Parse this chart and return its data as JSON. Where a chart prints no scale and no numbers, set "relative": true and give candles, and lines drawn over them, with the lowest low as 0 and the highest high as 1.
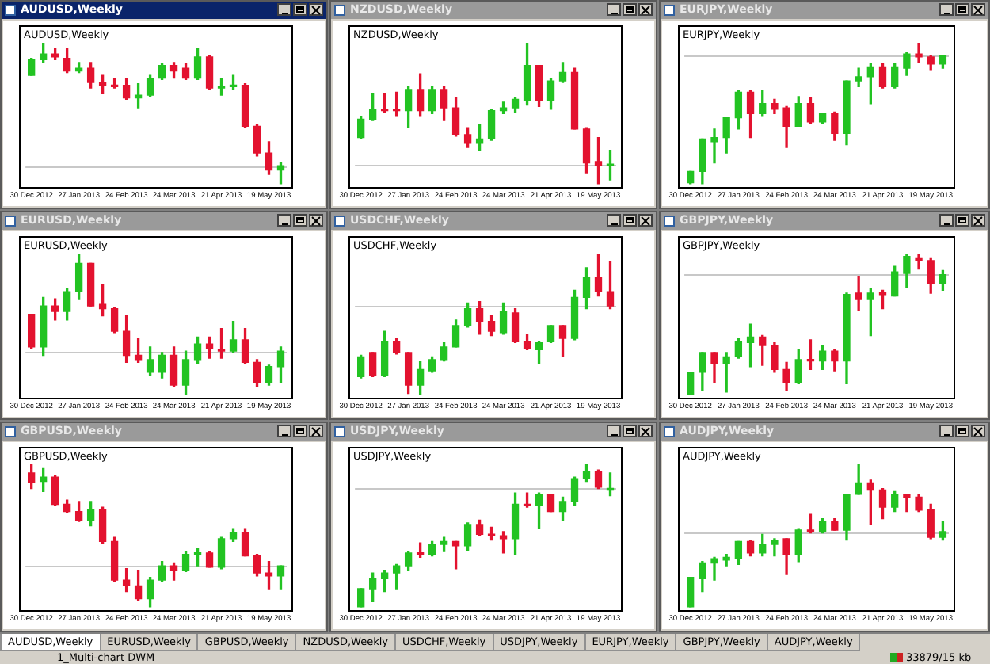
{
  "chart_data": [
    {
      "type": "candlestick",
      "title": "AUDUSD,Weekly",
      "subtitle": "AUDUSD,Weekly",
      "relative": true,
      "legend": false,
      "categories": [
        "30 Dec 2012",
        null,
        null,
        null,
        "27 Jan 2013",
        null,
        null,
        null,
        "24 Feb 2013",
        null,
        null,
        null,
        "24 Mar 2013",
        null,
        null,
        null,
        "21 Apr 2013",
        null,
        null,
        null,
        "19 May 2013",
        null
      ],
      "ohlc": [
        [
          0.77,
          0.89,
          0.77,
          0.88
        ],
        [
          0.88,
          1.0,
          0.86,
          0.92
        ],
        [
          0.92,
          0.96,
          0.88,
          0.9
        ],
        [
          0.89,
          0.96,
          0.79,
          0.8
        ],
        [
          0.8,
          0.86,
          0.79,
          0.82
        ],
        [
          0.82,
          0.86,
          0.68,
          0.72
        ],
        [
          0.72,
          0.77,
          0.64,
          0.7
        ],
        [
          0.7,
          0.75,
          0.68,
          0.69
        ],
        [
          0.7,
          0.75,
          0.6,
          0.61
        ],
        [
          0.61,
          0.71,
          0.54,
          0.63
        ],
        [
          0.63,
          0.77,
          0.62,
          0.75
        ],
        [
          0.75,
          0.85,
          0.74,
          0.84
        ],
        [
          0.84,
          0.86,
          0.75,
          0.8
        ],
        [
          0.82,
          0.85,
          0.74,
          0.75
        ],
        [
          0.75,
          0.96,
          0.74,
          0.9
        ],
        [
          0.9,
          0.91,
          0.67,
          0.68
        ],
        [
          0.68,
          0.75,
          0.63,
          0.69
        ],
        [
          0.69,
          0.77,
          0.67,
          0.7
        ],
        [
          0.7,
          0.71,
          0.4,
          0.41
        ],
        [
          0.41,
          0.42,
          0.2,
          0.22
        ],
        [
          0.22,
          0.3,
          0.07,
          0.1
        ],
        [
          0.1,
          0.15,
          0.0,
          0.13
        ]
      ],
      "colors": [
        "#22c322",
        "#22c322",
        "#e3122f",
        "#e3122f",
        "#22c322",
        "#e3122f",
        "#e3122f",
        "#e3122f",
        "#e3122f",
        "#22c322",
        "#22c322",
        "#22c322",
        "#e3122f",
        "#e3122f",
        "#22c322",
        "#e3122f",
        "#22c322",
        "#22c322",
        "#e3122f",
        "#e3122f",
        "#e3122f",
        "#22c322"
      ],
      "ref_lines": [
        {
          "axis": "y",
          "value": 0.13,
          "color": "#c8c8c8"
        }
      ]
    },
    {
      "type": "candlestick",
      "title": "NZDUSD,Weekly",
      "subtitle": "NZDUSD,Weekly",
      "relative": true,
      "legend": false,
      "categories": [
        "30 Dec 2012",
        null,
        null,
        null,
        "27 Jan 2013",
        null,
        null,
        null,
        "24 Feb 2013",
        null,
        null,
        null,
        "24 Mar 2013",
        null,
        null,
        null,
        "21 Apr 2013",
        null,
        null,
        null,
        "19 May 2013",
        null
      ],
      "ohlc": [
        [
          0.33,
          0.48,
          0.32,
          0.46
        ],
        [
          0.46,
          0.64,
          0.45,
          0.53
        ],
        [
          0.53,
          0.64,
          0.51,
          0.52
        ],
        [
          0.53,
          0.65,
          0.48,
          0.52
        ],
        [
          0.52,
          0.69,
          0.4,
          0.67
        ],
        [
          0.67,
          0.78,
          0.48,
          0.52
        ],
        [
          0.52,
          0.69,
          0.5,
          0.67
        ],
        [
          0.67,
          0.69,
          0.45,
          0.54
        ],
        [
          0.54,
          0.61,
          0.34,
          0.35
        ],
        [
          0.35,
          0.4,
          0.26,
          0.29
        ],
        [
          0.29,
          0.42,
          0.24,
          0.32
        ],
        [
          0.32,
          0.53,
          0.31,
          0.52
        ],
        [
          0.52,
          0.58,
          0.5,
          0.54
        ],
        [
          0.54,
          0.61,
          0.51,
          0.6
        ],
        [
          0.59,
          1.0,
          0.56,
          0.84
        ],
        [
          0.84,
          0.84,
          0.55,
          0.59
        ],
        [
          0.59,
          0.75,
          0.53,
          0.73
        ],
        [
          0.73,
          0.86,
          0.72,
          0.79
        ],
        [
          0.79,
          0.82,
          0.39,
          0.39
        ],
        [
          0.39,
          0.4,
          0.08,
          0.15
        ],
        [
          0.16,
          0.33,
          0.0,
          0.13
        ],
        [
          0.13,
          0.24,
          0.03,
          0.14
        ]
      ],
      "colors": [
        "#22c322",
        "#22c322",
        "#e3122f",
        "#e3122f",
        "#22c322",
        "#e3122f",
        "#22c322",
        "#e3122f",
        "#e3122f",
        "#e3122f",
        "#22c322",
        "#22c322",
        "#22c322",
        "#22c322",
        "#22c322",
        "#e3122f",
        "#22c322",
        "#22c322",
        "#e3122f",
        "#e3122f",
        "#e3122f",
        "#22c322"
      ],
      "ref_lines": [
        {
          "axis": "y",
          "value": 0.14,
          "color": "#c8c8c8"
        }
      ]
    },
    {
      "type": "candlestick",
      "title": "EURJPY,Weekly",
      "subtitle": "EURJPY,Weekly",
      "relative": true,
      "legend": false,
      "categories": [
        "30 Dec 2012",
        null,
        null,
        null,
        "27 Jan 2013",
        null,
        null,
        null,
        "24 Feb 2013",
        null,
        null,
        null,
        "24 Mar 2013",
        null,
        null,
        null,
        "21 Apr 2013",
        null,
        null,
        null,
        "19 May 2013",
        null
      ],
      "ohlc": [
        [
          0.01,
          0.09,
          0.0,
          0.09
        ],
        [
          0.09,
          0.32,
          0.0,
          0.32
        ],
        [
          0.3,
          0.39,
          0.15,
          0.33
        ],
        [
          0.33,
          0.47,
          0.22,
          0.47
        ],
        [
          0.47,
          0.66,
          0.39,
          0.65
        ],
        [
          0.65,
          0.66,
          0.33,
          0.5
        ],
        [
          0.5,
          0.66,
          0.48,
          0.57
        ],
        [
          0.57,
          0.6,
          0.5,
          0.53
        ],
        [
          0.54,
          0.55,
          0.26,
          0.41
        ],
        [
          0.41,
          0.62,
          0.41,
          0.57
        ],
        [
          0.57,
          0.61,
          0.43,
          0.44
        ],
        [
          0.44,
          0.5,
          0.43,
          0.5
        ],
        [
          0.5,
          0.51,
          0.31,
          0.36
        ],
        [
          0.36,
          0.73,
          0.28,
          0.73
        ],
        [
          0.73,
          0.82,
          0.69,
          0.76
        ],
        [
          0.76,
          0.85,
          0.57,
          0.83
        ],
        [
          0.83,
          0.85,
          0.68,
          0.69
        ],
        [
          0.69,
          0.85,
          0.68,
          0.83
        ],
        [
          0.82,
          0.93,
          0.77,
          0.92
        ],
        [
          0.92,
          1.0,
          0.86,
          0.9
        ],
        [
          0.9,
          0.91,
          0.81,
          0.85
        ],
        [
          0.85,
          0.91,
          0.82,
          0.91
        ]
      ],
      "colors": [
        "#22c322",
        "#22c322",
        "#22c322",
        "#22c322",
        "#22c322",
        "#e3122f",
        "#22c322",
        "#e3122f",
        "#e3122f",
        "#22c322",
        "#e3122f",
        "#22c322",
        "#e3122f",
        "#22c322",
        "#22c322",
        "#22c322",
        "#e3122f",
        "#22c322",
        "#22c322",
        "#e3122f",
        "#e3122f",
        "#22c322"
      ],
      "ref_lines": [
        {
          "axis": "y",
          "value": 0.91,
          "color": "#c8c8c8"
        }
      ]
    },
    {
      "type": "candlestick",
      "title": "EURUSD,Weekly",
      "subtitle": "EURUSD,Weekly",
      "relative": true,
      "legend": false,
      "categories": [
        "30 Dec 2012",
        null,
        null,
        null,
        "27 Jan 2013",
        null,
        null,
        null,
        "24 Feb 2013",
        null,
        null,
        null,
        "24 Mar 2013",
        null,
        null,
        null,
        "21 Apr 2013",
        null,
        null,
        null,
        "19 May 2013",
        null
      ],
      "ohlc": [
        [
          0.57,
          0.57,
          0.33,
          0.34
        ],
        [
          0.34,
          0.69,
          0.28,
          0.63
        ],
        [
          0.63,
          0.68,
          0.53,
          0.59
        ],
        [
          0.59,
          0.75,
          0.53,
          0.73
        ],
        [
          0.73,
          1.0,
          0.68,
          0.93
        ],
        [
          0.93,
          0.93,
          0.63,
          0.63
        ],
        [
          0.64,
          0.78,
          0.56,
          0.61
        ],
        [
          0.61,
          0.62,
          0.44,
          0.45
        ],
        [
          0.45,
          0.56,
          0.23,
          0.28
        ],
        [
          0.28,
          0.4,
          0.23,
          0.25
        ],
        [
          0.16,
          0.34,
          0.14,
          0.25
        ],
        [
          0.16,
          0.3,
          0.12,
          0.28
        ],
        [
          0.28,
          0.34,
          0.06,
          0.07
        ],
        [
          0.07,
          0.31,
          0.0,
          0.25
        ],
        [
          0.25,
          0.41,
          0.22,
          0.36
        ],
        [
          0.36,
          0.41,
          0.26,
          0.33
        ],
        [
          0.32,
          0.47,
          0.26,
          0.31
        ],
        [
          0.31,
          0.52,
          0.3,
          0.39
        ],
        [
          0.39,
          0.47,
          0.22,
          0.23
        ],
        [
          0.23,
          0.25,
          0.06,
          0.09
        ],
        [
          0.09,
          0.21,
          0.07,
          0.2
        ],
        [
          0.2,
          0.34,
          0.09,
          0.31
        ]
      ],
      "colors": [
        "#e3122f",
        "#22c322",
        "#e3122f",
        "#22c322",
        "#22c322",
        "#e3122f",
        "#e3122f",
        "#e3122f",
        "#e3122f",
        "#e3122f",
        "#22c322",
        "#22c322",
        "#e3122f",
        "#22c322",
        "#22c322",
        "#e3122f",
        "#e3122f",
        "#22c322",
        "#e3122f",
        "#e3122f",
        "#22c322",
        "#22c322"
      ],
      "ref_lines": [
        {
          "axis": "y",
          "value": 0.31,
          "color": "#c8c8c8"
        }
      ]
    },
    {
      "type": "candlestick",
      "title": "USDCHF,Weekly",
      "subtitle": "USDCHF,Weekly",
      "relative": true,
      "legend": false,
      "categories": [
        "30 Dec 2012",
        null,
        null,
        null,
        "27 Jan 2013",
        null,
        null,
        null,
        "24 Feb 2013",
        null,
        null,
        null,
        "24 Mar 2013",
        null,
        null,
        null,
        "21 Apr 2013",
        null,
        null,
        null,
        "19 May 2013",
        null
      ],
      "ohlc": [
        [
          0.13,
          0.28,
          0.12,
          0.27
        ],
        [
          0.3,
          0.3,
          0.13,
          0.14
        ],
        [
          0.14,
          0.45,
          0.13,
          0.38
        ],
        [
          0.38,
          0.4,
          0.29,
          0.3
        ],
        [
          0.3,
          0.3,
          0.01,
          0.07
        ],
        [
          0.07,
          0.24,
          0.0,
          0.18
        ],
        [
          0.17,
          0.27,
          0.16,
          0.25
        ],
        [
          0.25,
          0.37,
          0.24,
          0.34
        ],
        [
          0.34,
          0.53,
          0.34,
          0.49
        ],
        [
          0.49,
          0.65,
          0.48,
          0.61
        ],
        [
          0.61,
          0.66,
          0.43,
          0.52
        ],
        [
          0.52,
          0.56,
          0.42,
          0.45
        ],
        [
          0.44,
          0.65,
          0.43,
          0.59
        ],
        [
          0.58,
          0.61,
          0.37,
          0.38
        ],
        [
          0.38,
          0.43,
          0.32,
          0.33
        ],
        [
          0.32,
          0.38,
          0.22,
          0.37
        ],
        [
          0.38,
          0.49,
          0.37,
          0.49
        ],
        [
          0.49,
          0.49,
          0.27,
          0.4
        ],
        [
          0.4,
          0.74,
          0.39,
          0.69
        ],
        [
          0.69,
          0.9,
          0.61,
          0.83
        ],
        [
          0.83,
          1.0,
          0.7,
          0.73
        ],
        [
          0.73,
          0.94,
          0.61,
          0.63
        ]
      ],
      "colors": [
        "#22c322",
        "#e3122f",
        "#22c322",
        "#e3122f",
        "#e3122f",
        "#22c322",
        "#22c322",
        "#22c322",
        "#22c322",
        "#22c322",
        "#e3122f",
        "#e3122f",
        "#22c322",
        "#e3122f",
        "#e3122f",
        "#22c322",
        "#22c322",
        "#e3122f",
        "#22c322",
        "#22c322",
        "#e3122f",
        "#e3122f"
      ],
      "ref_lines": [
        {
          "axis": "y",
          "value": 0.63,
          "color": "#c8c8c8"
        }
      ]
    },
    {
      "type": "candlestick",
      "title": "GBPJPY,Weekly",
      "subtitle": "GBPJPY,Weekly",
      "relative": true,
      "legend": false,
      "categories": [
        "30 Dec 2012",
        null,
        null,
        null,
        "27 Jan 2013",
        null,
        null,
        null,
        "24 Feb 2013",
        null,
        null,
        null,
        "24 Mar 2013",
        null,
        null,
        null,
        "21 Apr 2013",
        null,
        null,
        null,
        "19 May 2013",
        null
      ],
      "ohlc": [
        [
          0.0,
          0.16,
          0.0,
          0.16
        ],
        [
          0.16,
          0.3,
          0.03,
          0.3
        ],
        [
          0.3,
          0.3,
          0.09,
          0.22
        ],
        [
          0.22,
          0.3,
          0.02,
          0.27
        ],
        [
          0.27,
          0.4,
          0.26,
          0.38
        ],
        [
          0.37,
          0.5,
          0.2,
          0.41
        ],
        [
          0.41,
          0.42,
          0.21,
          0.35
        ],
        [
          0.35,
          0.37,
          0.16,
          0.18
        ],
        [
          0.18,
          0.23,
          0.03,
          0.09
        ],
        [
          0.09,
          0.32,
          0.08,
          0.25
        ],
        [
          0.25,
          0.39,
          0.18,
          0.24
        ],
        [
          0.24,
          0.35,
          0.18,
          0.31
        ],
        [
          0.31,
          0.32,
          0.17,
          0.24
        ],
        [
          0.24,
          0.72,
          0.08,
          0.71
        ],
        [
          0.72,
          0.84,
          0.6,
          0.68
        ],
        [
          0.68,
          0.75,
          0.42,
          0.72
        ],
        [
          0.72,
          0.74,
          0.61,
          0.71
        ],
        [
          0.7,
          0.91,
          0.7,
          0.87
        ],
        [
          0.86,
          1.0,
          0.76,
          0.98
        ],
        [
          0.97,
          1.0,
          0.89,
          0.95
        ],
        [
          0.95,
          0.97,
          0.72,
          0.79
        ],
        [
          0.79,
          0.88,
          0.74,
          0.85
        ]
      ],
      "colors": [
        "#22c322",
        "#22c322",
        "#e3122f",
        "#22c322",
        "#22c322",
        "#22c322",
        "#e3122f",
        "#e3122f",
        "#e3122f",
        "#22c322",
        "#e3122f",
        "#22c322",
        "#e3122f",
        "#22c322",
        "#e3122f",
        "#22c322",
        "#e3122f",
        "#22c322",
        "#22c322",
        "#e3122f",
        "#e3122f",
        "#22c322"
      ],
      "ref_lines": [
        {
          "axis": "y",
          "value": 0.85,
          "color": "#c8c8c8"
        }
      ]
    },
    {
      "type": "candlestick",
      "title": "GBPUSD,Weekly",
      "subtitle": "GBPUSD,Weekly",
      "relative": true,
      "legend": false,
      "categories": [
        "30 Dec 2012",
        null,
        null,
        null,
        "27 Jan 2013",
        null,
        null,
        null,
        "24 Feb 2013",
        null,
        null,
        null,
        "24 Mar 2013",
        null,
        null,
        null,
        "21 Apr 2013",
        null,
        null,
        null,
        "19 May 2013",
        null
      ],
      "ohlc": [
        [
          0.94,
          1.0,
          0.83,
          0.87
        ],
        [
          0.88,
          0.97,
          0.81,
          0.91
        ],
        [
          0.91,
          0.92,
          0.71,
          0.72
        ],
        [
          0.72,
          0.75,
          0.66,
          0.67
        ],
        [
          0.67,
          0.74,
          0.6,
          0.61
        ],
        [
          0.61,
          0.74,
          0.57,
          0.68
        ],
        [
          0.68,
          0.7,
          0.45,
          0.46
        ],
        [
          0.46,
          0.49,
          0.18,
          0.19
        ],
        [
          0.19,
          0.27,
          0.11,
          0.15
        ],
        [
          0.15,
          0.26,
          0.05,
          0.06
        ],
        [
          0.06,
          0.21,
          0.0,
          0.19
        ],
        [
          0.19,
          0.32,
          0.18,
          0.29
        ],
        [
          0.29,
          0.31,
          0.19,
          0.26
        ],
        [
          0.26,
          0.39,
          0.25,
          0.37
        ],
        [
          0.37,
          0.41,
          0.29,
          0.38
        ],
        [
          0.38,
          0.39,
          0.28,
          0.28
        ],
        [
          0.28,
          0.49,
          0.27,
          0.48
        ],
        [
          0.48,
          0.55,
          0.46,
          0.52
        ],
        [
          0.52,
          0.55,
          0.36,
          0.36
        ],
        [
          0.36,
          0.37,
          0.22,
          0.24
        ],
        [
          0.24,
          0.32,
          0.13,
          0.22
        ],
        [
          0.22,
          0.29,
          0.13,
          0.29
        ]
      ],
      "colors": [
        "#e3122f",
        "#22c322",
        "#e3122f",
        "#e3122f",
        "#e3122f",
        "#22c322",
        "#e3122f",
        "#e3122f",
        "#e3122f",
        "#e3122f",
        "#22c322",
        "#22c322",
        "#e3122f",
        "#22c322",
        "#22c322",
        "#e3122f",
        "#22c322",
        "#22c322",
        "#e3122f",
        "#e3122f",
        "#e3122f",
        "#22c322"
      ],
      "ref_lines": [
        {
          "axis": "y",
          "value": 0.29,
          "color": "#c8c8c8"
        }
      ]
    },
    {
      "type": "candlestick",
      "title": "USDJPY,Weekly",
      "subtitle": "USDJPY,Weekly",
      "relative": true,
      "legend": false,
      "categories": [
        "30 Dec 2012",
        null,
        null,
        null,
        "27 Jan 2013",
        null,
        null,
        null,
        "24 Feb 2013",
        null,
        null,
        null,
        "24 Mar 2013",
        null,
        null,
        null,
        "21 Apr 2013",
        null,
        null,
        null,
        "19 May 2013",
        null
      ],
      "ohlc": [
        [
          0.0,
          0.13,
          0.0,
          0.13
        ],
        [
          0.13,
          0.24,
          0.04,
          0.2
        ],
        [
          0.2,
          0.26,
          0.11,
          0.24
        ],
        [
          0.24,
          0.3,
          0.13,
          0.29
        ],
        [
          0.29,
          0.39,
          0.26,
          0.38
        ],
        [
          0.38,
          0.45,
          0.35,
          0.37
        ],
        [
          0.37,
          0.46,
          0.36,
          0.44
        ],
        [
          0.44,
          0.49,
          0.39,
          0.46
        ],
        [
          0.46,
          0.46,
          0.27,
          0.43
        ],
        [
          0.43,
          0.59,
          0.4,
          0.58
        ],
        [
          0.58,
          0.61,
          0.5,
          0.51
        ],
        [
          0.51,
          0.56,
          0.47,
          0.5
        ],
        [
          0.5,
          0.53,
          0.38,
          0.48
        ],
        [
          0.48,
          0.8,
          0.37,
          0.72
        ],
        [
          0.72,
          0.8,
          0.7,
          0.71
        ],
        [
          0.71,
          0.8,
          0.55,
          0.79
        ],
        [
          0.79,
          0.79,
          0.67,
          0.67
        ],
        [
          0.67,
          0.77,
          0.61,
          0.74
        ],
        [
          0.74,
          0.91,
          0.71,
          0.9
        ],
        [
          0.9,
          1.0,
          0.88,
          0.95
        ],
        [
          0.95,
          0.96,
          0.83,
          0.84
        ],
        [
          0.82,
          0.94,
          0.78,
          0.83
        ]
      ],
      "colors": [
        "#22c322",
        "#22c322",
        "#22c322",
        "#22c322",
        "#22c322",
        "#e3122f",
        "#22c322",
        "#22c322",
        "#e3122f",
        "#22c322",
        "#e3122f",
        "#e3122f",
        "#e3122f",
        "#22c322",
        "#e3122f",
        "#22c322",
        "#e3122f",
        "#22c322",
        "#22c322",
        "#22c322",
        "#e3122f",
        "#22c322"
      ],
      "ref_lines": [
        {
          "axis": "y",
          "value": 0.83,
          "color": "#c8c8c8"
        }
      ]
    },
    {
      "type": "candlestick",
      "title": "AUDJPY,Weekly",
      "subtitle": "AUDJPY,Weekly",
      "relative": true,
      "legend": false,
      "categories": [
        "30 Dec 2012",
        null,
        null,
        null,
        "27 Jan 2013",
        null,
        null,
        null,
        "24 Feb 2013",
        null,
        null,
        null,
        "24 Mar 2013",
        null,
        null,
        null,
        "21 Apr 2013",
        null,
        null,
        null,
        "19 May 2013",
        null
      ],
      "ohlc": [
        [
          0.0,
          0.21,
          0.0,
          0.21
        ],
        [
          0.2,
          0.32,
          0.11,
          0.31
        ],
        [
          0.31,
          0.35,
          0.19,
          0.34
        ],
        [
          0.33,
          0.37,
          0.29,
          0.35
        ],
        [
          0.34,
          0.46,
          0.3,
          0.46
        ],
        [
          0.46,
          0.47,
          0.36,
          0.38
        ],
        [
          0.38,
          0.51,
          0.36,
          0.44
        ],
        [
          0.44,
          0.48,
          0.36,
          0.47
        ],
        [
          0.48,
          0.48,
          0.23,
          0.37
        ],
        [
          0.37,
          0.55,
          0.32,
          0.54
        ],
        [
          0.54,
          0.65,
          0.52,
          0.53
        ],
        [
          0.53,
          0.62,
          0.52,
          0.6
        ],
        [
          0.6,
          0.62,
          0.54,
          0.54
        ],
        [
          0.54,
          0.79,
          0.47,
          0.79
        ],
        [
          0.79,
          1.0,
          0.79,
          0.87
        ],
        [
          0.87,
          0.89,
          0.58,
          0.82
        ],
        [
          0.82,
          0.83,
          0.62,
          0.7
        ],
        [
          0.7,
          0.81,
          0.67,
          0.79
        ],
        [
          0.79,
          0.79,
          0.67,
          0.77
        ],
        [
          0.77,
          0.79,
          0.67,
          0.68
        ],
        [
          0.68,
          0.72,
          0.48,
          0.49
        ],
        [
          0.49,
          0.6,
          0.47,
          0.53
        ]
      ],
      "colors": [
        "#22c322",
        "#22c322",
        "#22c322",
        "#22c322",
        "#22c322",
        "#e3122f",
        "#22c322",
        "#22c322",
        "#e3122f",
        "#22c322",
        "#e3122f",
        "#22c322",
        "#e3122f",
        "#22c322",
        "#22c322",
        "#e3122f",
        "#e3122f",
        "#22c322",
        "#e3122f",
        "#e3122f",
        "#e3122f",
        "#22c322"
      ],
      "ref_lines": [
        {
          "axis": "y",
          "value": 0.52,
          "color": "#c8c8c8"
        }
      ]
    },
    {
      "type": "other",
      "annotations": [
        "AUDUSD,Weekly",
        "EURUSD,Weekly",
        "GBPUSD,Weekly",
        "NZDUSD,Weekly",
        "USDCHF,Weekly",
        "USDJPY,Weekly",
        "EURJPY,Weekly",
        "GBPJPY,Weekly",
        "AUDJPY,Weekly",
        "1_Multi-chart DWM",
        "33879/15 kb"
      ]
    }
  ]
}
